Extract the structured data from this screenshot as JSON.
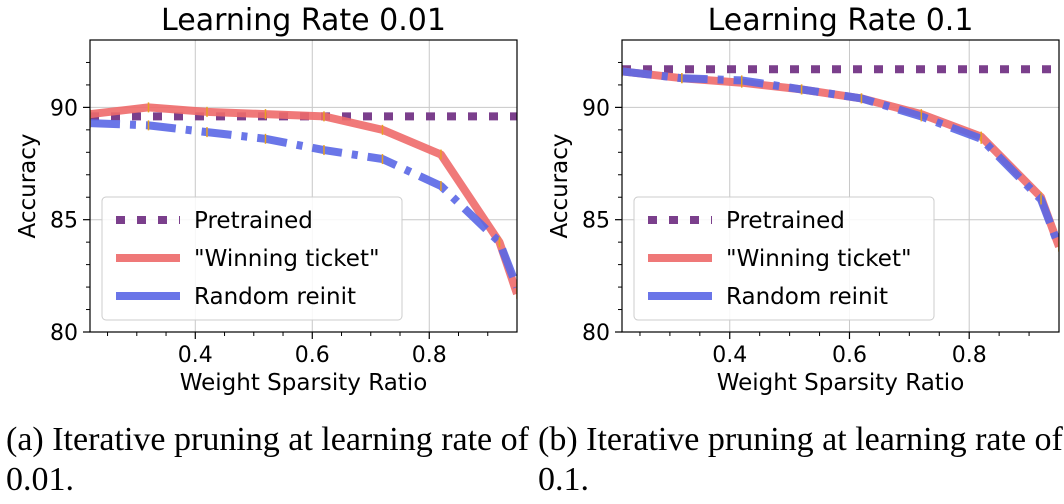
{
  "chart_data": [
    {
      "type": "line",
      "title": "Learning Rate 0.01",
      "xlabel": "Weight Sparsity Ratio",
      "ylabel": "Accuracy",
      "xlim": [
        0.22,
        0.95
      ],
      "ylim": [
        80,
        93
      ],
      "xticks": [
        0.4,
        0.6,
        0.8
      ],
      "yticks": [
        80,
        85,
        90
      ],
      "xtick_labels": [
        "0.4",
        "0.6",
        "0.8"
      ],
      "ytick_labels": [
        "80",
        "85",
        "90"
      ],
      "grid": true,
      "legend_position": "lower-left",
      "series": [
        {
          "name": "Pretrained",
          "style": "dotted",
          "color": "#7b3f8c",
          "x": [
            0.22,
            0.95
          ],
          "y": [
            89.6,
            89.6
          ]
        },
        {
          "name": "\"Winning ticket\"",
          "style": "solid",
          "color": "#ee6a6a",
          "x": [
            0.22,
            0.32,
            0.42,
            0.52,
            0.62,
            0.72,
            0.82,
            0.92,
            0.95
          ],
          "y": [
            89.7,
            90.0,
            89.8,
            89.7,
            89.6,
            89.0,
            87.9,
            84.0,
            81.7
          ]
        },
        {
          "name": "Random reinit",
          "style": "dash-dot",
          "color": "#5a67e6",
          "x": [
            0.22,
            0.32,
            0.42,
            0.52,
            0.62,
            0.72,
            0.82,
            0.92,
            0.95
          ],
          "y": [
            89.3,
            89.2,
            88.9,
            88.6,
            88.1,
            87.7,
            86.5,
            84.0,
            82.0
          ]
        }
      ]
    },
    {
      "type": "line",
      "title": "Learning Rate 0.1",
      "xlabel": "Weight Sparsity Ratio",
      "ylabel": "Accuracy",
      "xlim": [
        0.22,
        0.95
      ],
      "ylim": [
        80,
        93
      ],
      "xticks": [
        0.4,
        0.6,
        0.8
      ],
      "yticks": [
        80,
        85,
        90
      ],
      "xtick_labels": [
        "0.4",
        "0.6",
        "0.8"
      ],
      "ytick_labels": [
        "80",
        "85",
        "90"
      ],
      "grid": true,
      "legend_position": "lower-left",
      "series": [
        {
          "name": "Pretrained",
          "style": "dotted",
          "color": "#7b3f8c",
          "x": [
            0.22,
            0.95
          ],
          "y": [
            91.7,
            91.7
          ]
        },
        {
          "name": "\"Winning ticket\"",
          "style": "solid",
          "color": "#ee6a6a",
          "x": [
            0.22,
            0.32,
            0.42,
            0.52,
            0.62,
            0.72,
            0.82,
            0.92,
            0.95
          ],
          "y": [
            91.6,
            91.3,
            91.1,
            90.8,
            90.4,
            89.7,
            88.7,
            86.0,
            83.8
          ]
        },
        {
          "name": "Random reinit",
          "style": "dash-dot",
          "color": "#5a67e6",
          "x": [
            0.22,
            0.32,
            0.42,
            0.52,
            0.62,
            0.72,
            0.82,
            0.92,
            0.95
          ],
          "y": [
            91.6,
            91.3,
            91.2,
            90.8,
            90.4,
            89.6,
            88.6,
            85.9,
            83.8
          ]
        }
      ]
    }
  ],
  "captions": [
    "(a) Iterative pruning at learning rate of 0.01.",
    "(b) Iterative pruning at learning rate of 0.1."
  ]
}
